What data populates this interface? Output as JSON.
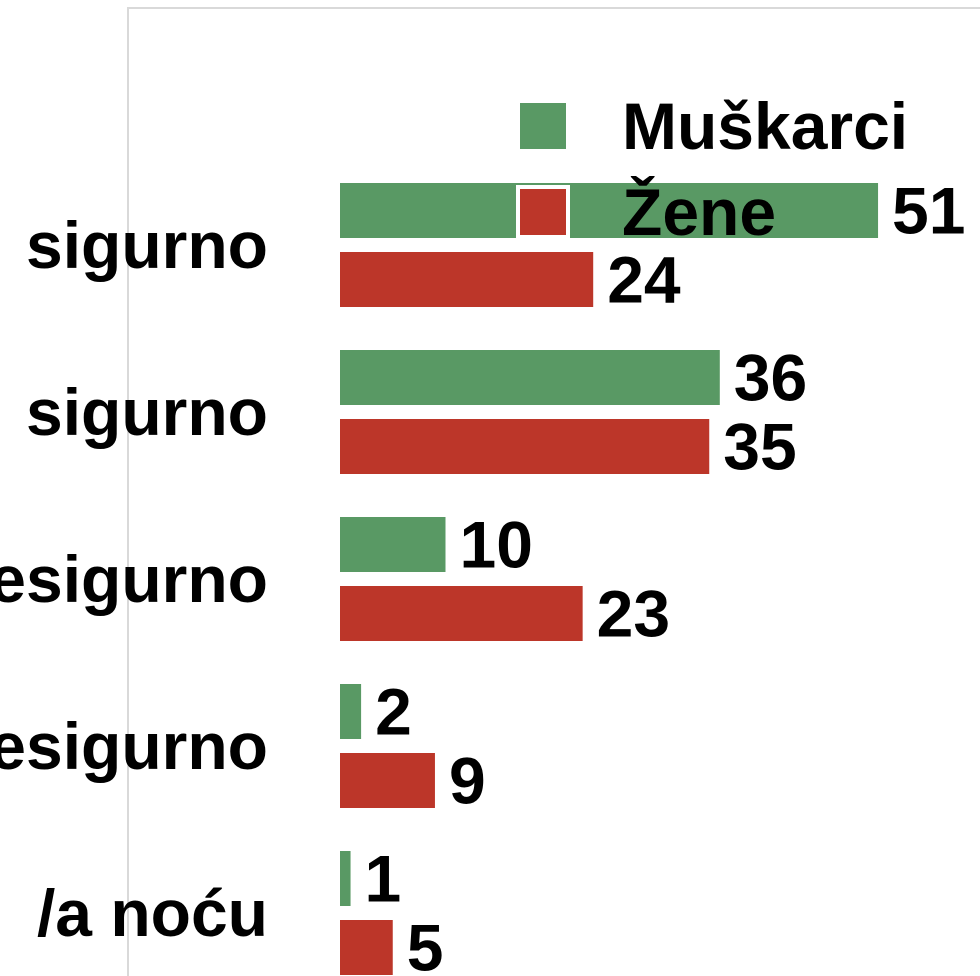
{
  "chart_data": {
    "type": "bar",
    "orientation": "horizontal",
    "categories": [
      "sigurno",
      "sigurno",
      "esigurno",
      "esigurno",
      "/a noću"
    ],
    "series": [
      {
        "name": "Muškarci",
        "values": [
          51,
          36,
          10,
          2,
          1
        ],
        "color": "#599964"
      },
      {
        "name": "Žene",
        "values": [
          24,
          35,
          23,
          9,
          5
        ],
        "color": "#bc3629"
      }
    ],
    "xlim": [
      0,
      60
    ],
    "grid": false,
    "legend_position": "top-right",
    "data_labels": true
  }
}
